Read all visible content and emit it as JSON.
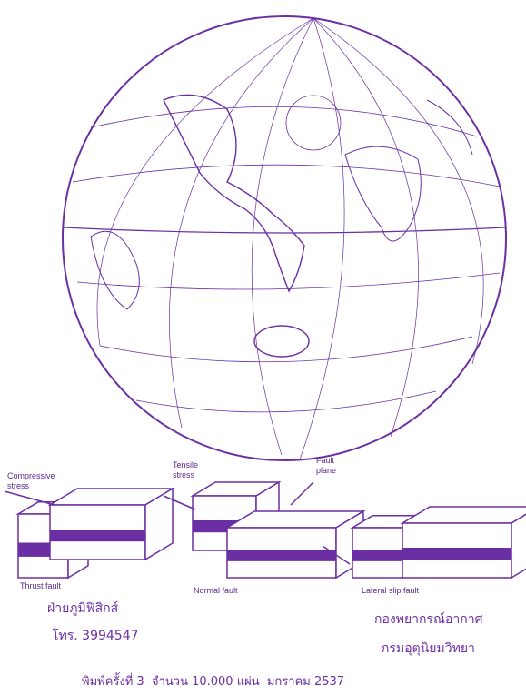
{
  "figure": {
    "labels": {
      "compressive_stress": [
        "Compressive",
        "stress"
      ],
      "tensile_stress": [
        "Tensile",
        "stress"
      ],
      "fault_plane": [
        "Fault",
        "plane"
      ],
      "thrust_fault": "Thrust fault",
      "normal_fault": "Normal fault",
      "lateral_slip_fault": "Lateral slip fault"
    }
  },
  "footer": {
    "left": {
      "office": "ฝ่ายภูมิฟิสิกส์",
      "phone": "โทร. 3994547"
    },
    "right": {
      "division": "กองพยากรณ์อากาศ",
      "department": "กรมอุตุนิยมวิทยา"
    },
    "print_info": "พิมพ์ครั้งที่ 3  จำนวน 10.000 แผ่น  มกราคม 2537"
  }
}
